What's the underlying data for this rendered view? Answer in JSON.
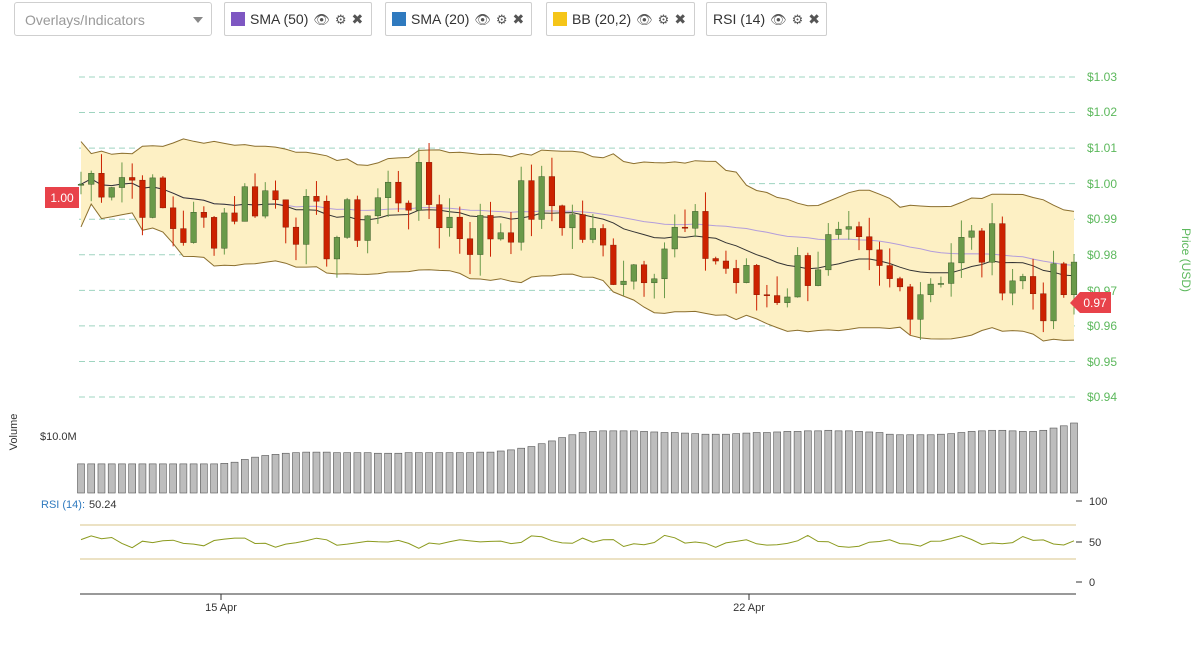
{
  "toolbar": {
    "select_placeholder": "Overlays/Indicators",
    "chips": [
      {
        "label": "SMA (50)",
        "color": "#7e57c2"
      },
      {
        "label": "SMA (20)",
        "color": "#2f7abf"
      },
      {
        "label": "BB (20,2)",
        "color": "#f5c518"
      },
      {
        "label": "RSI (14)",
        "color": ""
      }
    ],
    "icons": [
      "eye-icon",
      "gear-icon",
      "close-icon"
    ]
  },
  "price_axis": {
    "title": "Price (USD)",
    "ticks": [
      "$1.03",
      "$1.02",
      "$1.01",
      "$1.00",
      "$0.99",
      "$0.98",
      "$0.97",
      "$0.96",
      "$0.95",
      "$0.94"
    ],
    "left_marker": "1.00",
    "right_marker": "0.97"
  },
  "volume_axis": {
    "title": "Volume",
    "tick": "$10.0M"
  },
  "rsi": {
    "label": "RSI (14):",
    "value": "50.24",
    "ticks": [
      "100",
      "50",
      "0"
    ]
  },
  "time_axis": {
    "ticks": [
      "15 Apr",
      "22 Apr"
    ]
  },
  "colors": {
    "up": "#6a9a4a",
    "down": "#cc2200",
    "band_fill": "#fdf0c4",
    "band_line": "#8b6f2e",
    "grid": "#9fd4c0",
    "accent_text": "#5cb85c",
    "marker": "#e8424a",
    "volume": "#bdbdbd"
  },
  "chart_data": {
    "type": "candlestick",
    "ylim": [
      0.94,
      1.03
    ],
    "candle_count": 98,
    "close_start": 1.0,
    "close_end": 0.97,
    "volume_scale": "$10.0M",
    "volume_values_musd": [
      5.2,
      5.2,
      5.2,
      5.2,
      5.2,
      5.2,
      5.2,
      5.2,
      5.2,
      5.2,
      5.2,
      5.2,
      5.2,
      5.2,
      5.3,
      5.5,
      6.0,
      6.4,
      6.7,
      6.9,
      7.1,
      7.2,
      7.3,
      7.3,
      7.3,
      7.2,
      7.2,
      7.2,
      7.2,
      7.1,
      7.1,
      7.1,
      7.2,
      7.2,
      7.2,
      7.2,
      7.2,
      7.2,
      7.2,
      7.3,
      7.3,
      7.5,
      7.7,
      8.0,
      8.3,
      8.8,
      9.3,
      9.9,
      10.4,
      10.8,
      11.0,
      11.1,
      11.1,
      11.1,
      11.1,
      11.0,
      10.9,
      10.8,
      10.8,
      10.7,
      10.6,
      10.5,
      10.5,
      10.5,
      10.6,
      10.7,
      10.8,
      10.8,
      10.9,
      11.0,
      11.0,
      11.1,
      11.1,
      11.2,
      11.1,
      11.1,
      11.0,
      10.9,
      10.8,
      10.5,
      10.4,
      10.4,
      10.4,
      10.4,
      10.5,
      10.6,
      10.8,
      11.0,
      11.1,
      11.2,
      11.2,
      11.1,
      11.0,
      11.0,
      11.2,
      11.6,
      12.0,
      12.5
    ],
    "rsi_range": [
      0,
      100
    ],
    "rsi_bands": [
      30,
      70
    ]
  }
}
